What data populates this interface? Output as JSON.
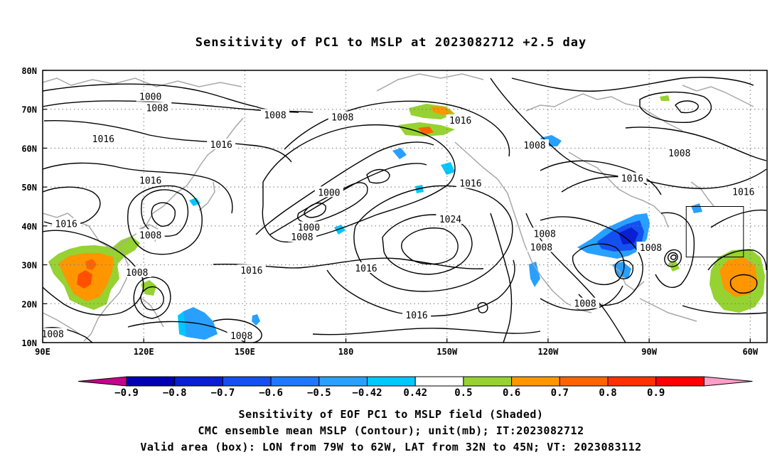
{
  "title": "Sensitivity of PC1 to MSLP at 2023082712 +2.5 day",
  "lat_labels": [
    "80N",
    "70N",
    "60N",
    "50N",
    "40N",
    "30N",
    "20N",
    "10N"
  ],
  "lon_labels": [
    "90E",
    "120E",
    "150E",
    "180",
    "150W",
    "120W",
    "90W",
    "60W"
  ],
  "colorbar": {
    "levels": [
      "-0.9",
      "-0.8",
      "-0.7",
      "-0.6",
      "-0.5",
      "-0.42",
      "0.42",
      "0.5",
      "0.6",
      "0.7",
      "0.8",
      "0.9"
    ],
    "colors": [
      "#c8008c",
      "#0000b4",
      "#0a1ed2",
      "#1450f0",
      "#1e78ff",
      "#28a0ff",
      "#00c8ff",
      "#ffffff",
      "#96d232",
      "#ff9600",
      "#ff6400",
      "#ff3200",
      "#ff0000",
      "#ff9ec8"
    ]
  },
  "contour_labels": [
    {
      "text": "1000",
      "lon": 122,
      "lat": 73.3
    },
    {
      "text": "1008",
      "lon": 124,
      "lat": 70.4
    },
    {
      "text": "1008",
      "lon": 159,
      "lat": 68.6
    },
    {
      "text": "1008",
      "lon": 179,
      "lat": 68
    },
    {
      "text": "1016",
      "lon": -146,
      "lat": 67.2
    },
    {
      "text": "1016",
      "lon": 108,
      "lat": 62.5
    },
    {
      "text": "1016",
      "lon": 143,
      "lat": 61
    },
    {
      "text": "1008",
      "lon": -124,
      "lat": 60.8
    },
    {
      "text": "1008",
      "lon": -81,
      "lat": 58.8
    },
    {
      "text": "1016",
      "lon": -95,
      "lat": 52.3
    },
    {
      "text": "1016",
      "lon": 122,
      "lat": 51.8
    },
    {
      "text": "1016",
      "lon": -143,
      "lat": 51
    },
    {
      "text": "1000",
      "lon": 175,
      "lat": 48.7
    },
    {
      "text": "1016",
      "lon": -62,
      "lat": 48.8
    },
    {
      "text": "1024",
      "lon": -149,
      "lat": 41.8
    },
    {
      "text": "1016",
      "lon": 97,
      "lat": 40.6
    },
    {
      "text": "1000",
      "lon": 169,
      "lat": 39.7
    },
    {
      "text": "1008",
      "lon": 167,
      "lat": 37.2
    },
    {
      "text": "1008",
      "lon": 122,
      "lat": 37.7
    },
    {
      "text": "1008",
      "lon": -121,
      "lat": 38.1
    },
    {
      "text": "1008",
      "lon": -122,
      "lat": 34.6
    },
    {
      "text": "1008",
      "lon": -89.5,
      "lat": 34.5
    },
    {
      "text": "1016",
      "lon": -174,
      "lat": 29.2
    },
    {
      "text": "1016",
      "lon": 152,
      "lat": 28.6
    },
    {
      "text": "1008",
      "lon": 118,
      "lat": 28.1
    },
    {
      "text": "1008",
      "lon": -109,
      "lat": 20.1
    },
    {
      "text": "1016",
      "lon": -159,
      "lat": 17.1
    },
    {
      "text": "1008",
      "lon": 149,
      "lat": 11.8
    },
    {
      "text": "1008",
      "lon": 93,
      "lat": 12.3
    }
  ],
  "valid_box": {
    "lon_min": -79,
    "lon_max": -62,
    "lat_min": 32,
    "lat_max": 45
  },
  "caption": [
    "Sensitivity of EOF PC1 to MSLP field (Shaded)",
    "CMC ensemble mean MSLP (Contour); unit(mb); IT:2023082712",
    "Valid area (box): LON from 79W to 62W, LAT from 32N to 45N; VT: 2023083112"
  ]
}
